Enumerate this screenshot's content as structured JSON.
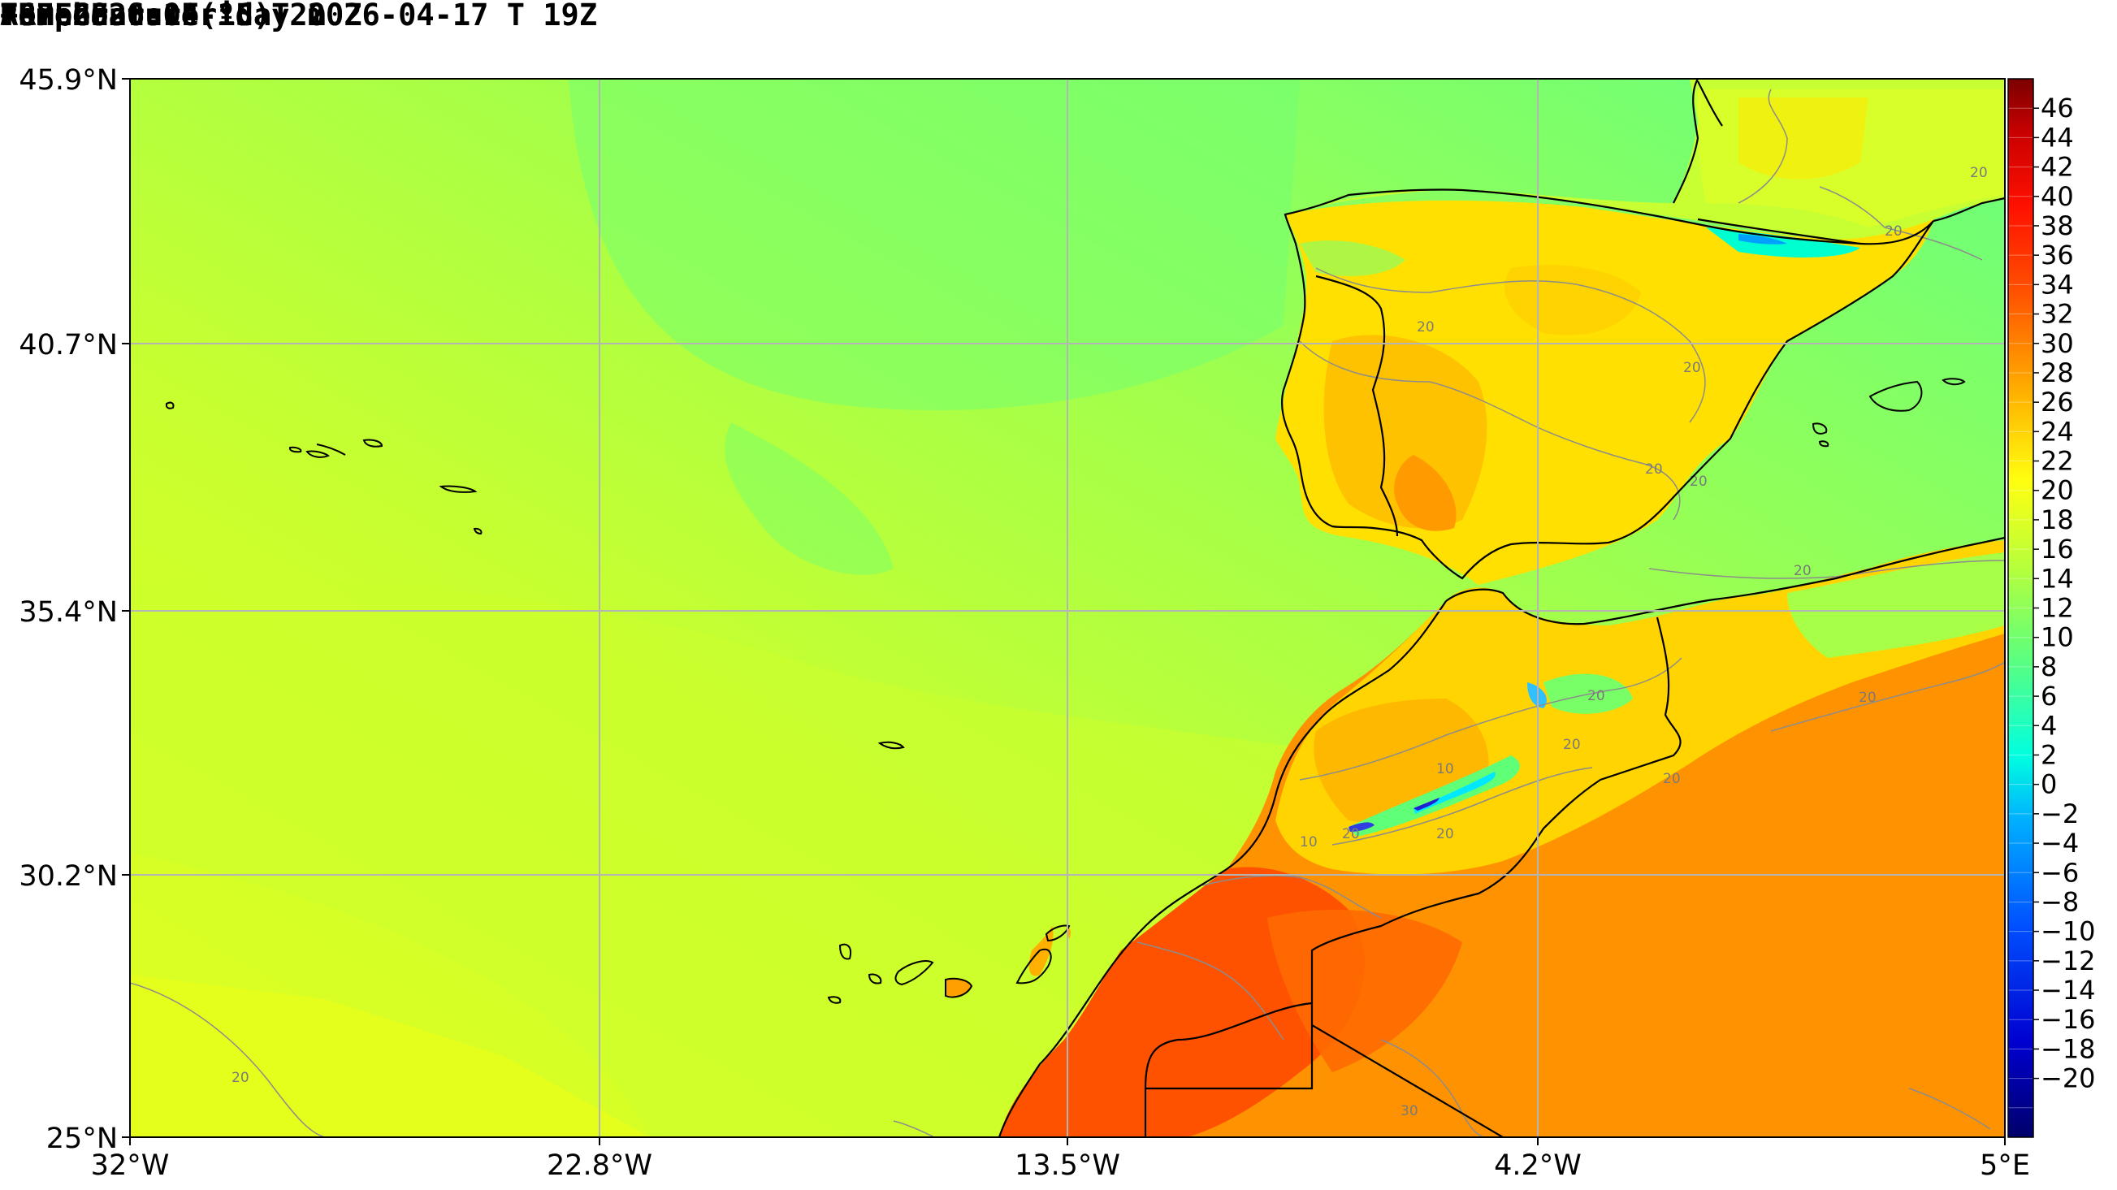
{
  "header": {
    "title": "Temperature(ºC) 2m",
    "model": "ARPEGE 0.1º",
    "lead": "+67 hours",
    "run": "Run 2026-04-15 T 00Z",
    "forecast": "Forecast: Friday 2026-04-17 T 19Z"
  },
  "axes": {
    "lat_labels": [
      "45.9°N",
      "40.7°N",
      "35.4°N",
      "30.2°N",
      "25°N"
    ],
    "lon_labels": [
      "32°W",
      "22.8°W",
      "13.5°W",
      "4.2°W",
      "5°E"
    ]
  },
  "colorbar": {
    "labels": [
      "46",
      "44",
      "42",
      "40",
      "38",
      "36",
      "34",
      "32",
      "30",
      "28",
      "26",
      "24",
      "22",
      "20",
      "18",
      "16",
      "14",
      "12",
      "10",
      "8",
      "6",
      "4",
      "2",
      "0",
      "−2",
      "−4",
      "−6",
      "−8",
      "−10",
      "−12",
      "−14",
      "−16",
      "−18",
      "−20"
    ]
  },
  "contour_labels": [
    "20",
    "20",
    "20",
    "20",
    "20",
    "20",
    "20",
    "20",
    "20",
    "20",
    "20",
    "20",
    "10",
    "10",
    "20",
    "20",
    "30"
  ],
  "colors": {
    "ocean_warm": "#d7ff2c",
    "ocean_mid": "#b6ff3c",
    "ocean_cool": "#7dff6a",
    "land_hot": "#ff5a0a",
    "land_warm": "#ffa800",
    "land_mild": "#ffd800"
  }
}
